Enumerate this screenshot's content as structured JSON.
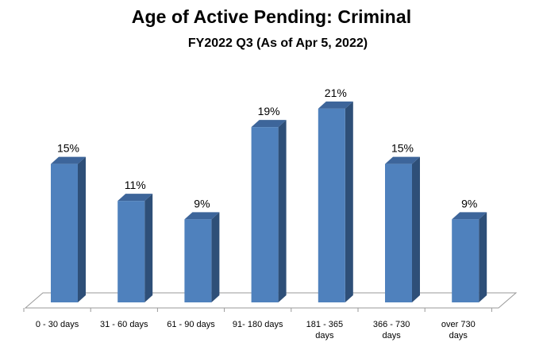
{
  "chart_data": {
    "type": "bar",
    "title": "Age of Active Pending: Criminal",
    "subtitle": "FY2022 Q3 (As of Apr 5, 2022)",
    "categories": [
      [
        "0 - 30 days"
      ],
      [
        "31 - 60 days"
      ],
      [
        "61 - 90 days"
      ],
      [
        "91- 180 days"
      ],
      [
        "181 - 365",
        "days"
      ],
      [
        "366 - 730",
        "days"
      ],
      [
        "over 730",
        "days"
      ]
    ],
    "values": [
      15,
      11,
      9,
      19,
      21,
      15,
      9
    ],
    "data_labels": [
      "15%",
      "11%",
      "9%",
      "19%",
      "21%",
      "15%",
      "9%"
    ],
    "unit": "%",
    "ylim": [
      0,
      24
    ],
    "xlabel": "",
    "ylabel": "",
    "grid": false,
    "legend": "none",
    "colors": {
      "bar_front": "#4F81BD",
      "bar_side": "#2E4F78",
      "bar_top": "#3D659A",
      "floor_stroke": "#9A9A9A"
    }
  }
}
